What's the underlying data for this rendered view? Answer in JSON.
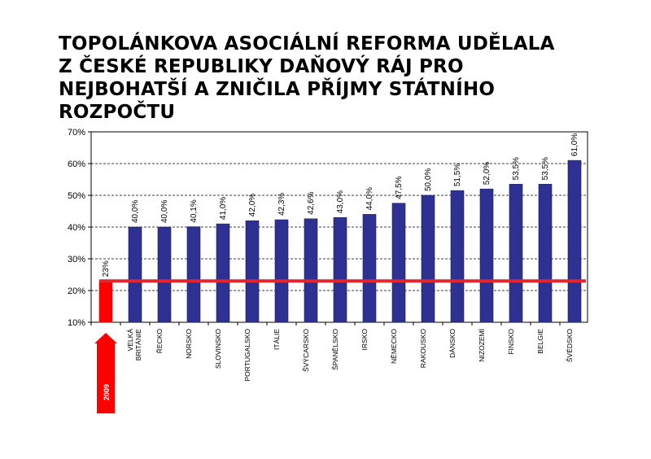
{
  "title": "TOPOLÁNKOVA ASOCIÁLNÍ REFORMA UDĚLALA\nZ ČESKÉ REPUBLIKY DAŇOVÝ RÁJ PRO\nNEJBOHATŠÍ A ZNIČILA PŘÍJMY STÁTNÍHO\nROZPOČTU",
  "chart_data": {
    "type": "bar",
    "ylim": [
      10,
      70
    ],
    "yticks": [
      "10%",
      "20%",
      "30%",
      "40%",
      "50%",
      "60%",
      "70%"
    ],
    "grid": true,
    "reference_line": {
      "value": 23,
      "color": "#e3262d"
    },
    "year_arrow": {
      "label": "2009",
      "color": "#ff0000"
    },
    "colors": {
      "highlight": "#ff0000",
      "bars": "#2e3192",
      "bar_edge": "#1c1c5c"
    },
    "categories": [
      [
        "",
        ""
      ],
      [
        "VELKÁ",
        "BRITÁNIE"
      ],
      [
        "ŘECKO"
      ],
      [
        "NORSKO"
      ],
      [
        "SLOVINSKO"
      ],
      [
        "PORTUGALSKO"
      ],
      [
        "ITÁLIE"
      ],
      [
        "ŠVÝCARSKO"
      ],
      [
        "ŠPANĚLSKO"
      ],
      [
        "IRSKO"
      ],
      [
        "NĚMECKO"
      ],
      [
        "RAKOUSKO"
      ],
      [
        "DÁNSKO"
      ],
      [
        "NIZOZEMÍ"
      ],
      [
        "FINSKO"
      ],
      [
        "BELGIE"
      ],
      [
        "ŠVÉDSKO"
      ]
    ],
    "values": [
      23,
      40,
      40,
      40.1,
      41,
      42,
      42.3,
      42.6,
      43,
      44,
      47.5,
      50,
      51.5,
      52,
      53.5,
      53.5,
      61
    ],
    "value_labels": [
      "23%",
      "40,0%",
      "40,0%",
      "40,1%",
      "41,0%",
      "42,0%",
      "42,3%",
      "42,6%",
      "43,0%",
      "44,0%",
      "47,5%",
      "50,0%",
      "51,5%",
      "52,0%",
      "53,5%",
      "53,5%",
      "61,0%"
    ]
  }
}
